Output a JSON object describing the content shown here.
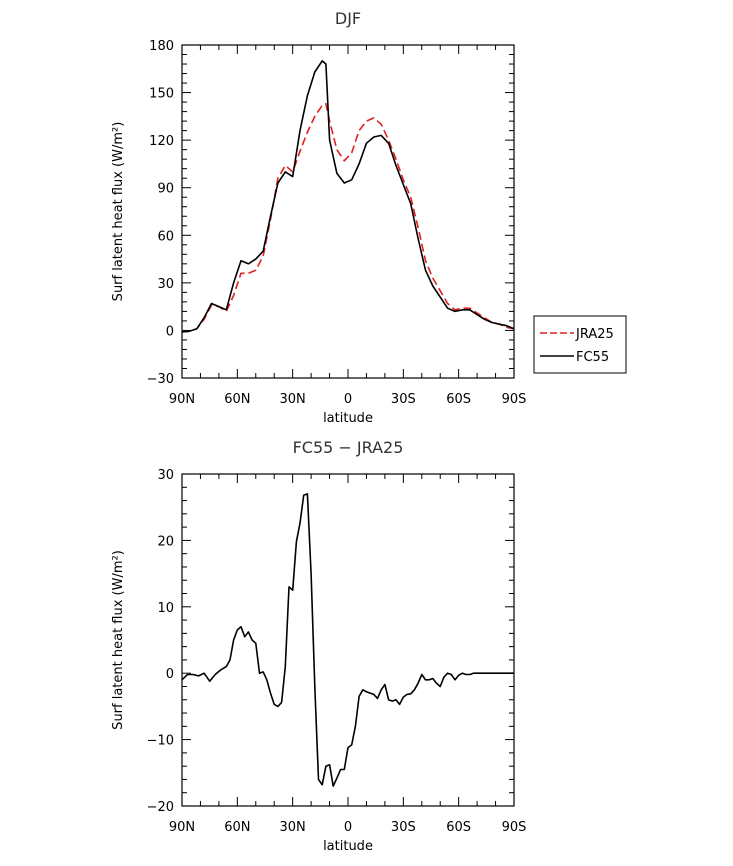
{
  "chart_data": [
    {
      "type": "line",
      "title": "DJF",
      "xlabel": "latitude",
      "ylabel": "Surf latent heat flux (W/m²)",
      "xlim": [
        -90,
        90
      ],
      "ylim": [
        -30,
        180
      ],
      "xticks": [
        -90,
        -60,
        -30,
        0,
        30,
        60,
        90
      ],
      "xtick_labels": [
        "90N",
        "60N",
        "30N",
        "0",
        "30S",
        "60S",
        "90S"
      ],
      "yticks": [
        -30,
        0,
        30,
        60,
        90,
        120,
        150,
        180
      ],
      "ytick_labels": [
        "−30",
        "0",
        "30",
        "60",
        "90",
        "120",
        "150",
        "180"
      ],
      "legend": {
        "placement": "right",
        "entries": [
          "JRA25",
          "FC55"
        ]
      },
      "x": [
        -90,
        -86,
        -82,
        -78,
        -74,
        -70,
        -66,
        -62,
        -58,
        -54,
        -50,
        -46,
        -42,
        -38,
        -34,
        -30,
        -26,
        -22,
        -18,
        -14,
        -12,
        -10,
        -6,
        -2,
        2,
        6,
        10,
        14,
        18,
        22,
        26,
        30,
        34,
        38,
        42,
        46,
        50,
        54,
        58,
        62,
        66,
        70,
        74,
        78,
        82,
        86,
        90
      ],
      "series": [
        {
          "name": "JRA25",
          "color": "#e02020",
          "dash": true,
          "values": [
            -1,
            -0.5,
            1,
            7,
            16,
            15,
            12,
            22,
            36,
            36,
            38,
            47,
            70,
            96,
            104,
            100,
            113,
            125,
            135,
            142,
            143,
            132,
            114,
            107,
            112,
            126,
            132,
            134,
            130,
            120,
            108,
            95,
            84,
            65,
            44,
            33,
            25,
            17,
            13,
            14,
            14,
            11,
            8,
            5,
            4,
            2,
            1
          ]
        },
        {
          "name": "FC55",
          "color": "#000000",
          "dash": false,
          "values": [
            -1,
            -0.5,
            1,
            8,
            17,
            15,
            13,
            30,
            44,
            42,
            45,
            50,
            72,
            93,
            100,
            97,
            126,
            148,
            163,
            170,
            168,
            120,
            99,
            93,
            95,
            105,
            118,
            122,
            123,
            118,
            104,
            92,
            80,
            58,
            38,
            28,
            21,
            14,
            12,
            13,
            13,
            10,
            7,
            5,
            4,
            3,
            1
          ]
        }
      ]
    },
    {
      "type": "line",
      "title": "FC55 − JRA25",
      "xlabel": "latitude",
      "ylabel": "Surf latent heat flux (W/m²)",
      "xlim": [
        -90,
        90
      ],
      "ylim": [
        -20,
        30
      ],
      "xticks": [
        -90,
        -60,
        -30,
        0,
        30,
        60,
        90
      ],
      "xtick_labels": [
        "90N",
        "60N",
        "30N",
        "0",
        "30S",
        "60S",
        "90S"
      ],
      "yticks": [
        -20,
        -10,
        0,
        10,
        20,
        30
      ],
      "ytick_labels": [
        "−20",
        "−10",
        "0",
        "10",
        "20",
        "30"
      ],
      "x": [
        -90,
        -87,
        -84,
        -81,
        -78,
        -75,
        -72,
        -69,
        -66,
        -64,
        -62,
        -60,
        -58,
        -56,
        -54,
        -52,
        -50,
        -48,
        -46,
        -44,
        -42,
        -40,
        -38,
        -36,
        -34,
        -32,
        -30,
        -28,
        -26,
        -24,
        -22,
        -20,
        -18,
        -16,
        -14,
        -12,
        -10,
        -8,
        -6,
        -4,
        -2,
        0,
        2,
        4,
        6,
        8,
        10,
        12,
        14,
        16,
        18,
        20,
        22,
        24,
        26,
        28,
        30,
        32,
        34,
        36,
        38,
        40,
        42,
        44,
        46,
        48,
        50,
        52,
        54,
        56,
        58,
        60,
        62,
        64,
        66,
        68,
        70,
        72,
        74,
        76,
        78,
        80,
        82,
        84,
        86,
        88,
        90
      ],
      "series": [
        {
          "name": "",
          "color": "#000000",
          "dash": false,
          "values": [
            -1,
            -0.2,
            -0.2,
            -0.4,
            0,
            -1.2,
            -0.2,
            0.5,
            1,
            2,
            5,
            6.5,
            7,
            5.5,
            6.2,
            5,
            4.5,
            0,
            0.2,
            -1,
            -3,
            -4.7,
            -5,
            -4.4,
            1,
            13,
            12.5,
            19.8,
            22.6,
            26.8,
            27,
            15,
            -2,
            -16,
            -16.8,
            -14,
            -13.8,
            -17,
            -15.8,
            -14.5,
            -14.5,
            -11.2,
            -10.8,
            -8,
            -3.5,
            -2.5,
            -2.8,
            -3,
            -3.2,
            -3.8,
            -2.5,
            -1.7,
            -4,
            -4.2,
            -4,
            -4.7,
            -3.6,
            -3.2,
            -3.1,
            -2.5,
            -1.5,
            -0.2,
            -1,
            -1,
            -0.8,
            -1.5,
            -2,
            -0.6,
            0,
            -0.2,
            -1,
            -0.3,
            0,
            -0.2,
            -0.2,
            0,
            0,
            0,
            0,
            0,
            0,
            0,
            0,
            0,
            0,
            0,
            0
          ]
        }
      ]
    }
  ]
}
